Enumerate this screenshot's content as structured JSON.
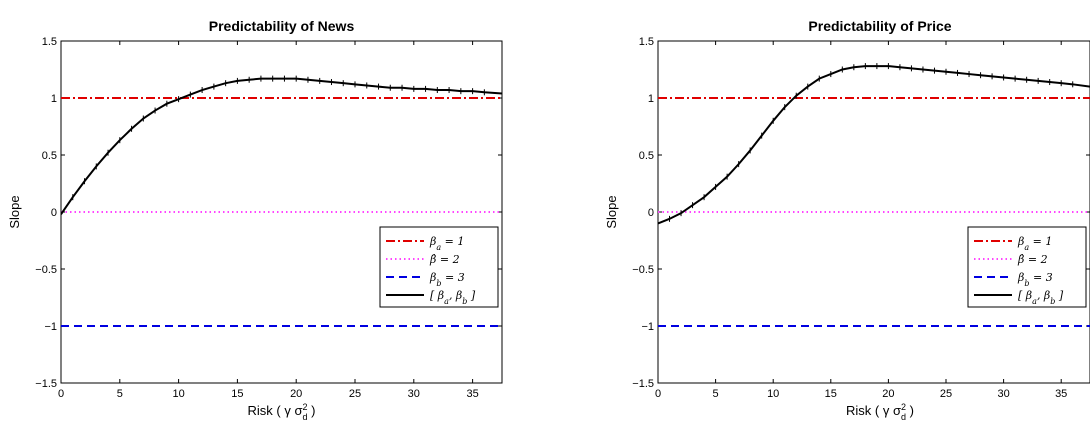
{
  "chart_data": [
    {
      "type": "line",
      "title": "Predictability of News",
      "xlabel": "Risk ( γ σ²_d )",
      "ylabel": "Slope",
      "xlim": [
        0,
        37.5
      ],
      "ylim": [
        -1.5,
        1.5
      ],
      "x_ticks": [
        "0",
        "5",
        "10",
        "15",
        "20",
        "25",
        "30",
        "35"
      ],
      "y_ticks": [
        "−1.5",
        "−1",
        "−0.5",
        "0",
        "0.5",
        "1",
        "1.5"
      ],
      "grid": false,
      "legend_position": "lower-right",
      "legend": [
        "β_a = 1",
        "β̂ = 2",
        "β_b = 3",
        "[ β_a, β_b ]"
      ],
      "series": [
        {
          "legend_label": "β_a = 1",
          "style": "dash-dot",
          "color": "#e00000",
          "x": [
            0,
            37.5
          ],
          "y": [
            1,
            1
          ]
        },
        {
          "legend_label": "β̂ = 2",
          "style": "dotted",
          "color": "#ff44ff",
          "x": [
            0,
            37.5
          ],
          "y": [
            0,
            0
          ]
        },
        {
          "legend_label": "β_b = 3",
          "style": "dashed",
          "color": "#0000e0",
          "x": [
            0,
            37.5
          ],
          "y": [
            -1,
            -1
          ]
        },
        {
          "legend_label": "[ β_a, β_b ]",
          "style": "solid-marked",
          "color": "#000000",
          "x": [
            0,
            1,
            2,
            3,
            4,
            5,
            6,
            7,
            8,
            9,
            10,
            11,
            12,
            13,
            14,
            15,
            16,
            17,
            18,
            19,
            20,
            21,
            22,
            23,
            24,
            25,
            26,
            27,
            28,
            29,
            30,
            31,
            32,
            33,
            34,
            35,
            36,
            37.5
          ],
          "y": [
            -0.02,
            0.13,
            0.27,
            0.4,
            0.52,
            0.63,
            0.73,
            0.82,
            0.89,
            0.95,
            0.99,
            1.03,
            1.07,
            1.1,
            1.13,
            1.15,
            1.16,
            1.17,
            1.17,
            1.17,
            1.17,
            1.16,
            1.15,
            1.14,
            1.13,
            1.12,
            1.11,
            1.1,
            1.09,
            1.09,
            1.08,
            1.08,
            1.07,
            1.07,
            1.06,
            1.06,
            1.05,
            1.04
          ]
        }
      ]
    },
    {
      "type": "line",
      "title": "Predictability of Price",
      "xlabel": "Risk ( γ σ²_d )",
      "ylabel": "Slope",
      "xlim": [
        0,
        37.5
      ],
      "ylim": [
        -1.5,
        1.5
      ],
      "x_ticks": [
        "0",
        "5",
        "10",
        "15",
        "20",
        "25",
        "30",
        "35"
      ],
      "y_ticks": [
        "−1.5",
        "−1",
        "−0.5",
        "0",
        "0.5",
        "1",
        "1.5"
      ],
      "grid": false,
      "legend_position": "lower-right",
      "legend": [
        "β_a = 1",
        "β̂ = 2",
        "β_b = 3",
        "[ β_a, β_b ]"
      ],
      "series": [
        {
          "legend_label": "β_a = 1",
          "style": "dash-dot",
          "color": "#e00000",
          "x": [
            0,
            37.5
          ],
          "y": [
            1,
            1
          ]
        },
        {
          "legend_label": "β̂ = 2",
          "style": "dotted",
          "color": "#ff44ff",
          "x": [
            0,
            37.5
          ],
          "y": [
            0,
            0
          ]
        },
        {
          "legend_label": "β_b = 3",
          "style": "dashed",
          "color": "#0000e0",
          "x": [
            0,
            37.5
          ],
          "y": [
            -1,
            -1
          ]
        },
        {
          "legend_label": "[ β_a, β_b ]",
          "style": "solid-marked",
          "color": "#000000",
          "x": [
            0,
            1,
            2,
            3,
            4,
            5,
            6,
            7,
            8,
            9,
            10,
            11,
            12,
            13,
            14,
            15,
            16,
            17,
            18,
            19,
            20,
            21,
            22,
            23,
            24,
            25,
            26,
            27,
            28,
            29,
            30,
            31,
            32,
            33,
            34,
            35,
            36,
            37.5
          ],
          "y": [
            -0.1,
            -0.06,
            -0.01,
            0.06,
            0.13,
            0.22,
            0.31,
            0.42,
            0.54,
            0.67,
            0.8,
            0.92,
            1.02,
            1.1,
            1.17,
            1.21,
            1.25,
            1.27,
            1.28,
            1.28,
            1.28,
            1.27,
            1.26,
            1.25,
            1.24,
            1.23,
            1.22,
            1.21,
            1.2,
            1.19,
            1.18,
            1.17,
            1.16,
            1.15,
            1.14,
            1.13,
            1.12,
            1.1
          ]
        }
      ]
    }
  ]
}
